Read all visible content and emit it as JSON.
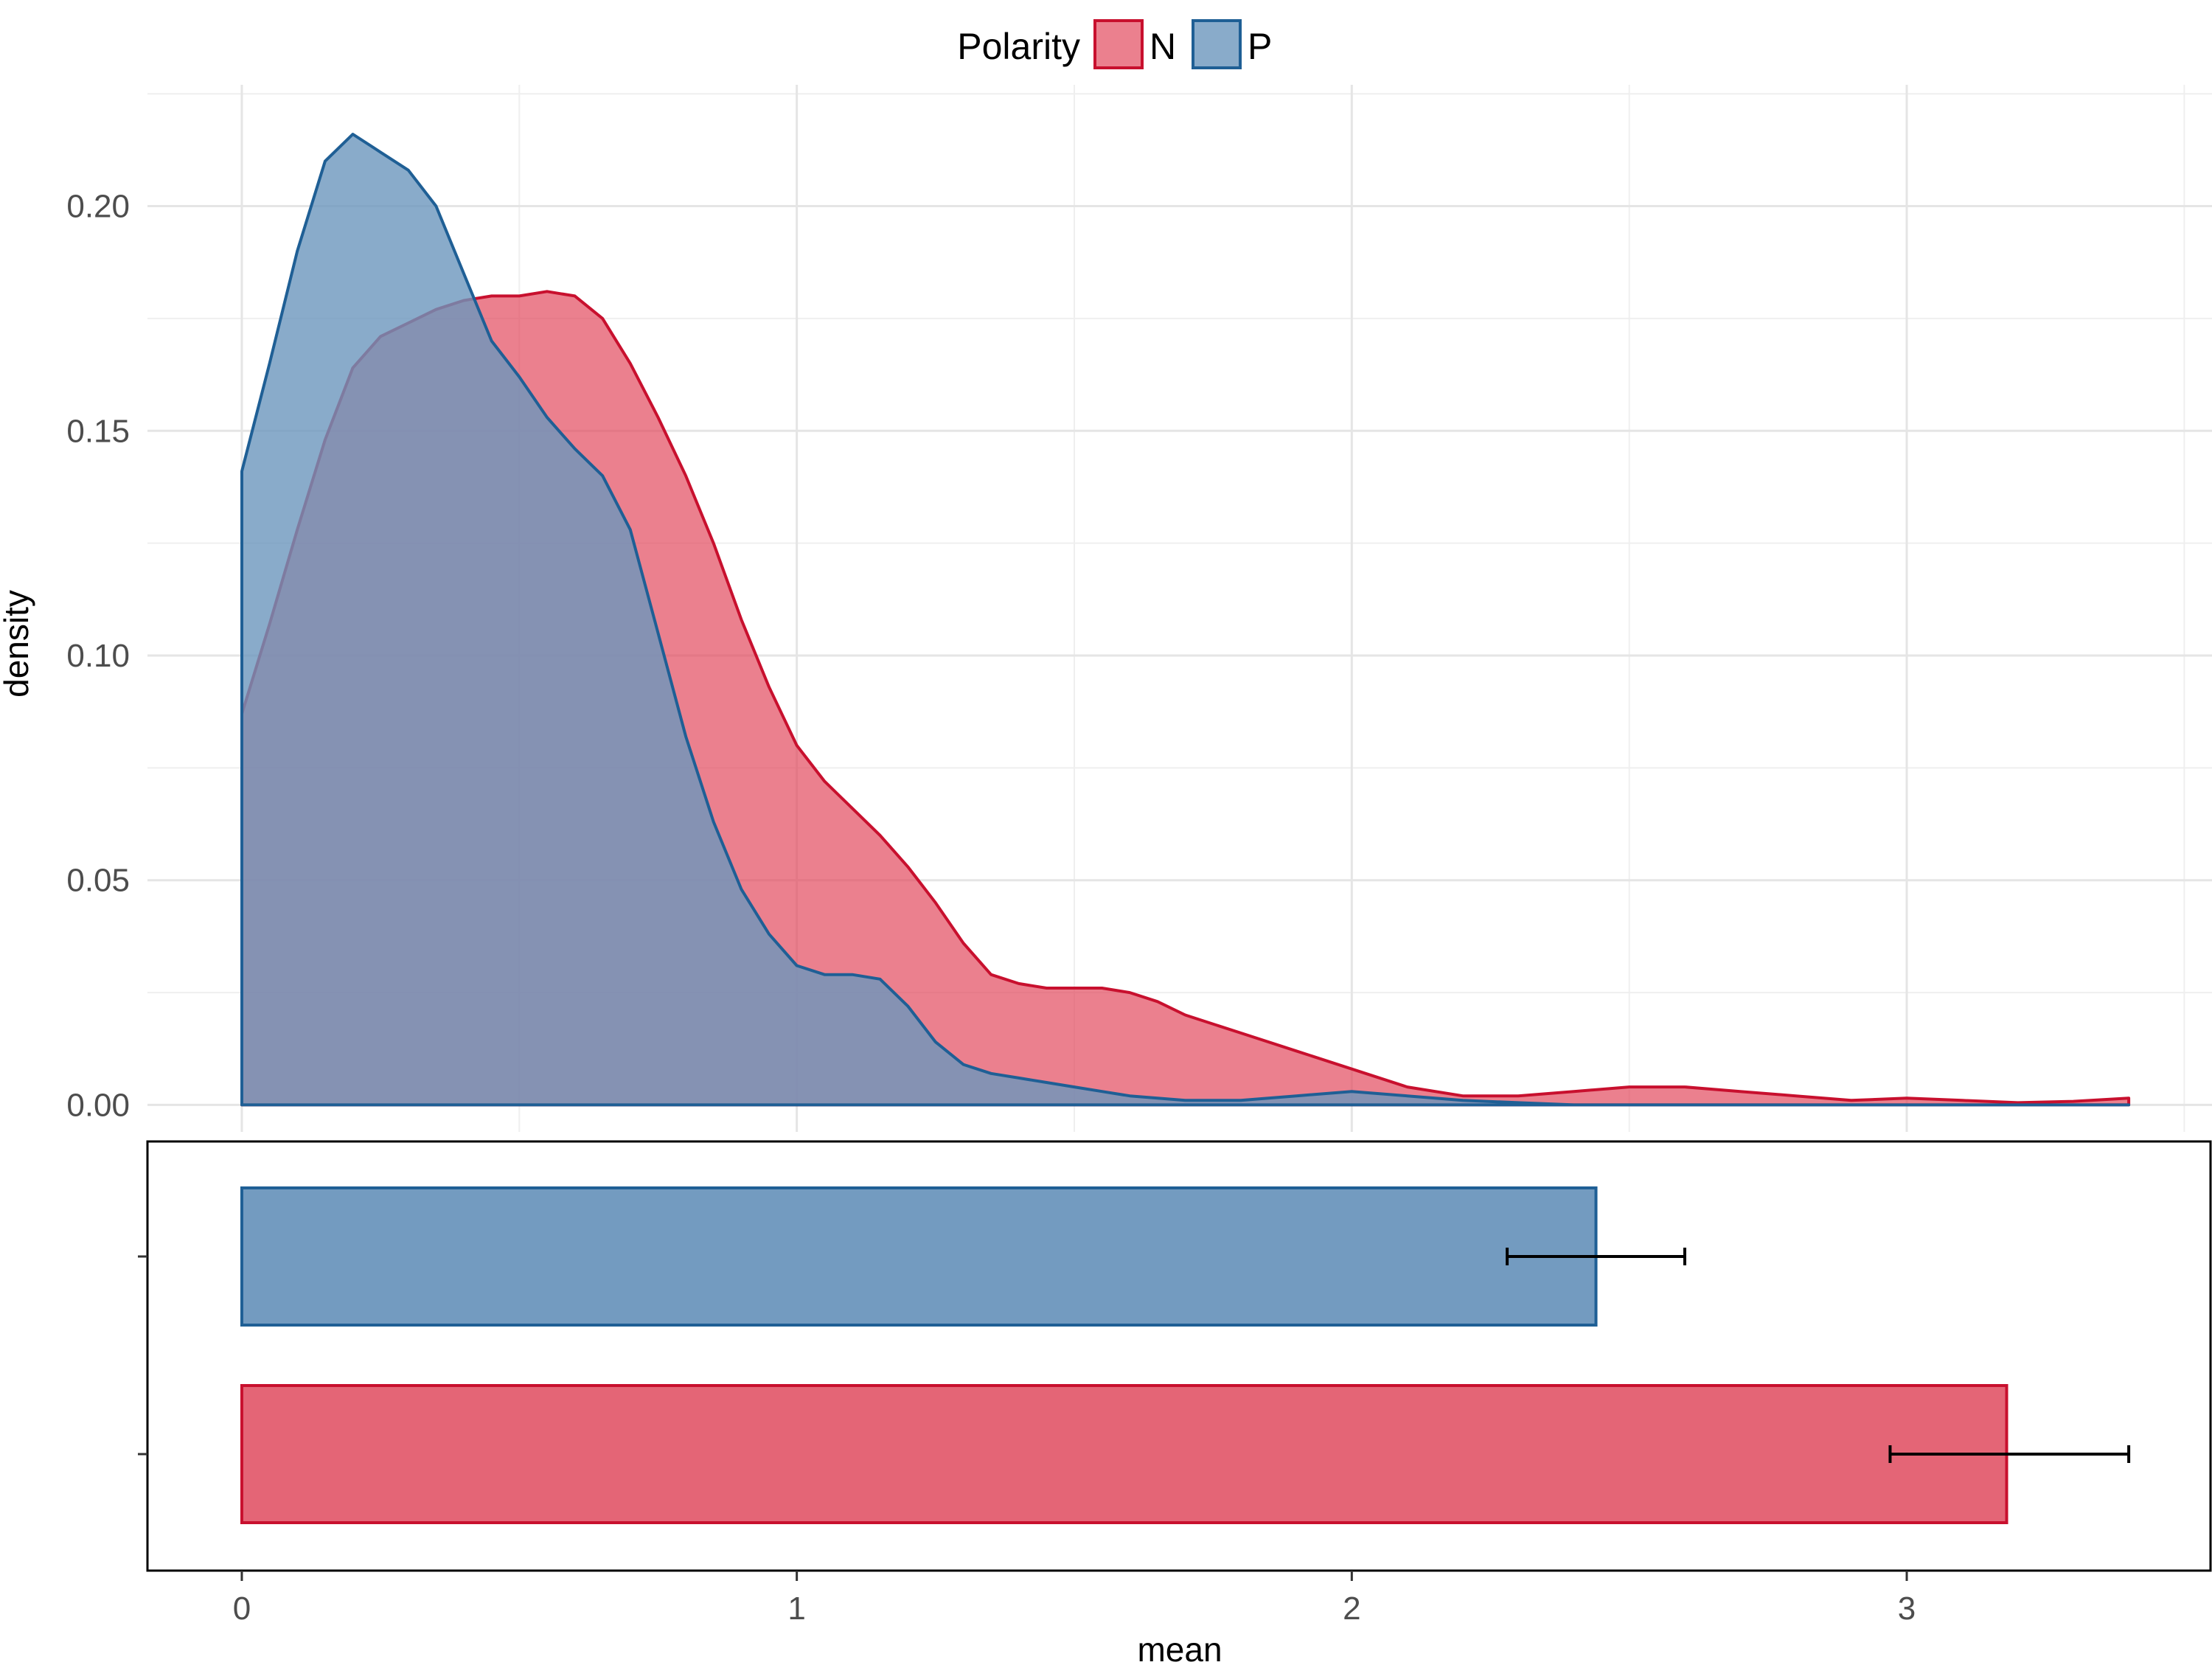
{
  "chart_data": [
    {
      "type": "area",
      "subtype": "density",
      "ylabel": "density",
      "xlim": [
        -0.17,
        3.55
      ],
      "ylim": [
        -0.006,
        0.227
      ],
      "y_ticks": [
        0.0,
        0.05,
        0.1,
        0.15,
        0.2
      ],
      "y_tick_labels": [
        "0.00",
        "0.05",
        "0.10",
        "0.15",
        "0.20"
      ],
      "grid": true,
      "legend": {
        "position": "top",
        "title": "Polarity",
        "entries": [
          "N",
          "P"
        ]
      },
      "series": [
        {
          "name": "N",
          "fill": "#e34a5e",
          "fill_opacity": 0.7,
          "stroke": "#c8102e",
          "x": [
            0,
            0.05,
            0.1,
            0.15,
            0.2,
            0.25,
            0.3,
            0.35,
            0.4,
            0.45,
            0.5,
            0.55,
            0.6,
            0.65,
            0.7,
            0.75,
            0.8,
            0.85,
            0.9,
            0.95,
            1.0,
            1.05,
            1.1,
            1.15,
            1.2,
            1.25,
            1.3,
            1.35,
            1.4,
            1.45,
            1.5,
            1.55,
            1.6,
            1.65,
            1.7,
            1.8,
            1.9,
            2.0,
            2.1,
            2.2,
            2.3,
            2.4,
            2.5,
            2.6,
            2.7,
            2.8,
            2.9,
            3.0,
            3.1,
            3.2,
            3.3,
            3.4
          ],
          "y": [
            0.087,
            0.107,
            0.128,
            0.148,
            0.164,
            0.171,
            0.174,
            0.177,
            0.179,
            0.18,
            0.18,
            0.181,
            0.18,
            0.175,
            0.165,
            0.153,
            0.14,
            0.125,
            0.108,
            0.093,
            0.08,
            0.072,
            0.066,
            0.06,
            0.053,
            0.045,
            0.036,
            0.029,
            0.027,
            0.026,
            0.026,
            0.026,
            0.025,
            0.023,
            0.02,
            0.016,
            0.012,
            0.008,
            0.004,
            0.002,
            0.002,
            0.003,
            0.004,
            0.004,
            0.003,
            0.002,
            0.001,
            0.0015,
            0.001,
            0.0005,
            0.0008,
            0.0015
          ]
        },
        {
          "name": "P",
          "fill": "#6b96bd",
          "fill_opacity": 0.8,
          "stroke": "#1f5f95",
          "x": [
            0,
            0.05,
            0.1,
            0.15,
            0.2,
            0.25,
            0.3,
            0.35,
            0.4,
            0.45,
            0.5,
            0.55,
            0.6,
            0.65,
            0.7,
            0.75,
            0.8,
            0.85,
            0.9,
            0.95,
            1.0,
            1.05,
            1.1,
            1.15,
            1.2,
            1.25,
            1.3,
            1.35,
            1.4,
            1.45,
            1.5,
            1.55,
            1.6,
            1.7,
            1.8,
            1.9,
            2.0,
            2.1,
            2.2,
            2.3,
            2.4,
            2.5,
            2.6,
            2.7,
            2.8,
            2.9,
            3.0,
            3.1,
            3.2,
            3.3,
            3.4
          ],
          "y": [
            0.141,
            0.165,
            0.19,
            0.21,
            0.216,
            0.212,
            0.208,
            0.2,
            0.185,
            0.17,
            0.162,
            0.153,
            0.146,
            0.14,
            0.128,
            0.105,
            0.082,
            0.063,
            0.048,
            0.038,
            0.031,
            0.029,
            0.029,
            0.028,
            0.022,
            0.014,
            0.009,
            0.007,
            0.006,
            0.005,
            0.004,
            0.003,
            0.002,
            0.001,
            0.001,
            0.002,
            0.003,
            0.002,
            0.001,
            0.0005,
            0.0,
            0.0,
            0.0,
            0.0,
            0.0,
            0.0,
            0.0,
            0.0,
            0.0,
            0.0,
            0.0
          ]
        }
      ]
    },
    {
      "type": "bar",
      "orientation": "horizontal",
      "xlabel": "mean",
      "xlim": [
        -0.17,
        3.55
      ],
      "x_ticks": [
        0,
        1,
        2,
        3
      ],
      "x_tick_labels": [
        "0",
        "1",
        "2",
        "3"
      ],
      "grid": false,
      "series": [
        {
          "name": "P",
          "value": 2.44,
          "error_low": 2.28,
          "error_high": 2.6,
          "fill": "#6b96bd",
          "stroke": "#1f5f95"
        },
        {
          "name": "N",
          "value": 3.18,
          "error_low": 2.97,
          "error_high": 3.4,
          "fill": "#e35d6f",
          "stroke": "#c8102e"
        }
      ]
    }
  ]
}
